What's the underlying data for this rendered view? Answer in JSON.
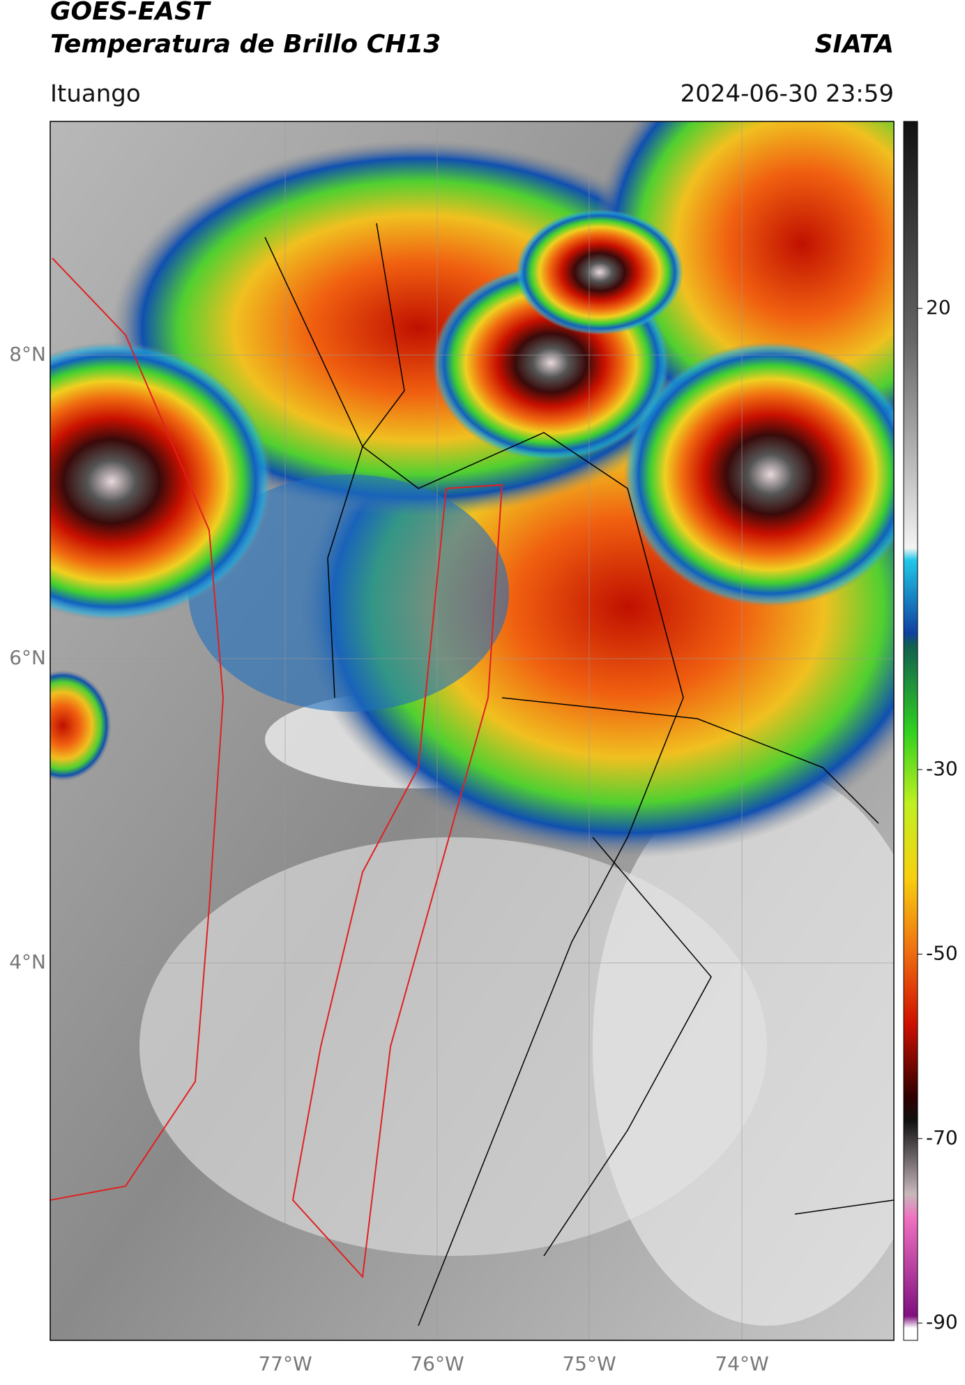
{
  "header": {
    "title": "GOES-EAST",
    "subtitle": "Temperatura de Brillo CH13",
    "org": "SIATA",
    "location": "Ituango",
    "timestamp": "2024-06-30 23:59"
  },
  "map": {
    "lat_labels": [
      "8°N",
      "6°N",
      "4°N"
    ],
    "lon_labels": [
      "77°W",
      "76°W",
      "75°W",
      "74°W"
    ]
  },
  "colorbar": {
    "ticks": [
      20,
      -30,
      -50,
      -70,
      -90
    ]
  }
}
